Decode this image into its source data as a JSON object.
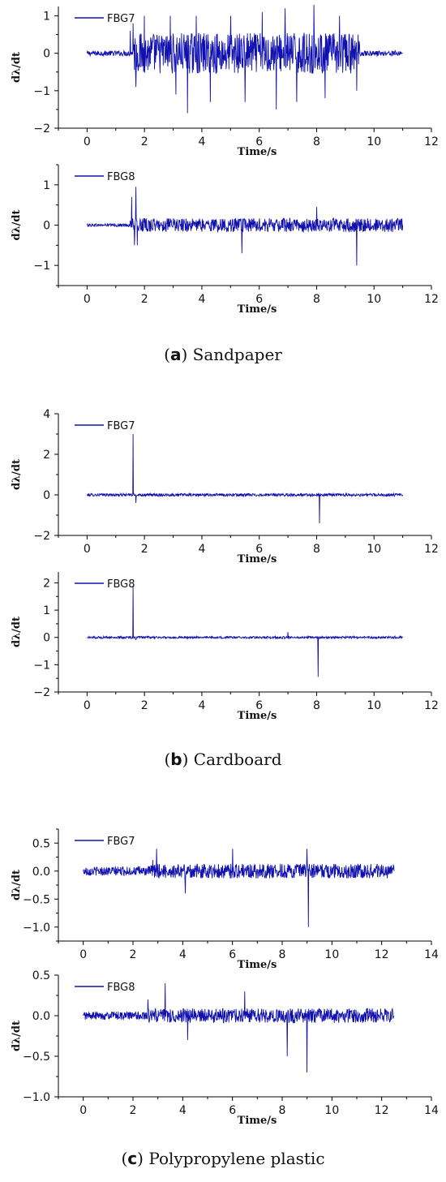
{
  "colors": {
    "series": "#1010b0",
    "axis": "#000000"
  },
  "figures": [
    {
      "caption": {
        "letter": "a",
        "text": "Sandpaper"
      },
      "charts": [
        {
          "type": "line",
          "legend": "FBG7",
          "xlabel": "Time/s",
          "ylabel": "dλ/dt",
          "xlim": [
            -1,
            12
          ],
          "ylim": [
            -2,
            1.25
          ],
          "xticks": [
            "0",
            "2",
            "4",
            "6",
            "8",
            "10",
            "12"
          ],
          "xtick_values": [
            0,
            2,
            4,
            6,
            8,
            10,
            12
          ],
          "yticks": [
            "1",
            "0",
            "−1",
            "−2"
          ],
          "ytick_values": [
            1,
            0,
            -1,
            -2
          ],
          "x_range": [
            0,
            11
          ],
          "x": [
            0,
            1.2,
            1.5,
            1.6,
            1.7,
            2.0,
            2.9,
            3.1,
            3.5,
            3.8,
            4.3,
            5.0,
            5.5,
            6.1,
            6.6,
            6.9,
            7.3,
            7.9,
            8.3,
            8.8,
            9.4,
            9.5,
            11
          ],
          "y": [
            0,
            0,
            0.6,
            0.8,
            -0.9,
            1.0,
            1.0,
            -1.1,
            -1.6,
            1.0,
            -1.3,
            1.0,
            -1.3,
            1.1,
            -1.5,
            1.2,
            -1.3,
            1.3,
            -1.2,
            1.0,
            -1.0,
            0,
            0
          ]
        },
        {
          "type": "line",
          "legend": "FBG8",
          "xlabel": "Time/s",
          "ylabel": "dλ/dt",
          "xlim": [
            -1,
            12
          ],
          "ylim": [
            -1.5,
            1.5
          ],
          "xticks": [
            "0",
            "2",
            "4",
            "6",
            "8",
            "10",
            "12"
          ],
          "xtick_values": [
            0,
            2,
            4,
            6,
            8,
            10,
            12
          ],
          "yticks": [
            "1",
            "0",
            "−1"
          ],
          "ytick_values": [
            1,
            0,
            -1
          ],
          "x_range": [
            0,
            11
          ],
          "x": [
            0,
            1.5,
            1.55,
            1.65,
            1.7,
            1.75,
            5.3,
            5.4,
            8.0,
            9.4,
            9.45,
            11
          ],
          "y": [
            0,
            0,
            0.7,
            -0.5,
            0.95,
            -0.5,
            0,
            -0.7,
            0.45,
            -1.0,
            0,
            0
          ]
        }
      ]
    },
    {
      "caption": {
        "letter": "b",
        "text": "Cardboard"
      },
      "charts": [
        {
          "type": "line",
          "legend": "FBG7",
          "xlabel": "Time/s",
          "ylabel": "dλ/dt",
          "xlim": [
            -1,
            12
          ],
          "ylim": [
            -2,
            4
          ],
          "xticks": [
            "0",
            "2",
            "4",
            "6",
            "8",
            "10",
            "12"
          ],
          "xtick_values": [
            0,
            2,
            4,
            6,
            8,
            10,
            12
          ],
          "yticks": [
            "4",
            "2",
            "0",
            "−2"
          ],
          "ytick_values": [
            4,
            2,
            0,
            -2
          ],
          "x_range": [
            0,
            11
          ],
          "x": [
            0,
            1.5,
            1.6,
            1.7,
            8.0,
            8.1,
            11
          ],
          "y": [
            0,
            0,
            3.0,
            -0.4,
            0,
            -1.4,
            0
          ]
        },
        {
          "type": "line",
          "legend": "FBG8",
          "xlabel": "Time/s",
          "ylabel": "dλ/dt",
          "xlim": [
            -1,
            12
          ],
          "ylim": [
            -2,
            2.4
          ],
          "xticks": [
            "0",
            "2",
            "4",
            "6",
            "8",
            "10",
            "12"
          ],
          "xtick_values": [
            0,
            2,
            4,
            6,
            8,
            10,
            12
          ],
          "yticks": [
            "2",
            "1",
            "0",
            "−1",
            "−2"
          ],
          "ytick_values": [
            2,
            1,
            0,
            -1,
            -2
          ],
          "x_range": [
            0,
            11
          ],
          "x": [
            0,
            1.5,
            1.6,
            1.7,
            7.0,
            8.0,
            8.05,
            11
          ],
          "y": [
            0,
            0,
            1.9,
            -0.1,
            0.2,
            0,
            -1.45,
            0
          ]
        }
      ]
    },
    {
      "caption": {
        "letter": "c",
        "text": "Polypropylene plastic"
      },
      "charts": [
        {
          "type": "line",
          "legend": "FBG7",
          "xlabel": "Time/s",
          "ylabel": "dλ/dt",
          "xlim": [
            -1,
            14
          ],
          "ylim": [
            -1.25,
            0.75
          ],
          "xticks": [
            "0",
            "2",
            "4",
            "6",
            "8",
            "10",
            "12",
            "14"
          ],
          "xtick_values": [
            0,
            2,
            4,
            6,
            8,
            10,
            12,
            14
          ],
          "yticks": [
            "0.5",
            "0.0",
            "−0.5",
            "−1.0"
          ],
          "ytick_values": [
            0.5,
            0,
            -0.5,
            -1.0
          ],
          "x_range": [
            0,
            12.5
          ],
          "x": [
            0,
            2.8,
            2.95,
            4.1,
            6.0,
            9.0,
            9.05,
            12.5
          ],
          "y": [
            0,
            0.2,
            0.4,
            -0.4,
            0.4,
            0.4,
            -1.0,
            0
          ]
        },
        {
          "type": "line",
          "legend": "FBG8",
          "xlabel": "Time/s",
          "ylabel": "dλ/dt",
          "xlim": [
            -1,
            14
          ],
          "ylim": [
            -1.0,
            0.5
          ],
          "xticks": [
            "0",
            "2",
            "4",
            "6",
            "8",
            "10",
            "12",
            "14"
          ],
          "xtick_values": [
            0,
            2,
            4,
            6,
            8,
            10,
            12,
            14
          ],
          "yticks": [
            "0.5",
            "0.0",
            "−0.5",
            "−1.0"
          ],
          "ytick_values": [
            0.5,
            0,
            -0.5,
            -1.0
          ],
          "x_range": [
            0,
            12.5
          ],
          "x": [
            0,
            2.6,
            3.3,
            4.2,
            6.5,
            8.2,
            9.0,
            12.5
          ],
          "y": [
            0,
            0.2,
            0.4,
            -0.3,
            0.3,
            -0.5,
            -0.7,
            0
          ]
        }
      ]
    }
  ],
  "chart_data": [
    {
      "type": "line",
      "series": [
        {
          "name": "FBG7"
        }
      ],
      "xlabel": "Time/s",
      "ylabel": "dλ/dt",
      "xlim": [
        -1,
        12
      ],
      "ylim": [
        -2,
        1.25
      ]
    },
    {
      "type": "line",
      "series": [
        {
          "name": "FBG8"
        }
      ],
      "xlabel": "Time/s",
      "ylabel": "dλ/dt",
      "xlim": [
        -1,
        12
      ],
      "ylim": [
        -1.5,
        1.5
      ]
    },
    {
      "type": "line",
      "series": [
        {
          "name": "FBG7"
        }
      ],
      "xlabel": "Time/s",
      "ylabel": "dλ/dt",
      "xlim": [
        -1,
        12
      ],
      "ylim": [
        -2,
        4
      ]
    },
    {
      "type": "line",
      "series": [
        {
          "name": "FBG8"
        }
      ],
      "xlabel": "Time/s",
      "ylabel": "dλ/dt",
      "xlim": [
        -1,
        12
      ],
      "ylim": [
        -2,
        2.4
      ]
    },
    {
      "type": "line",
      "series": [
        {
          "name": "FBG7"
        }
      ],
      "xlabel": "Time/s",
      "ylabel": "dλ/dt",
      "xlim": [
        -1,
        14
      ],
      "ylim": [
        -1.25,
        0.75
      ]
    },
    {
      "type": "line",
      "series": [
        {
          "name": "FBG8"
        }
      ],
      "xlabel": "Time/s",
      "ylabel": "dλ/dt",
      "xlim": [
        -1,
        14
      ],
      "ylim": [
        -1.0,
        0.5
      ]
    }
  ]
}
